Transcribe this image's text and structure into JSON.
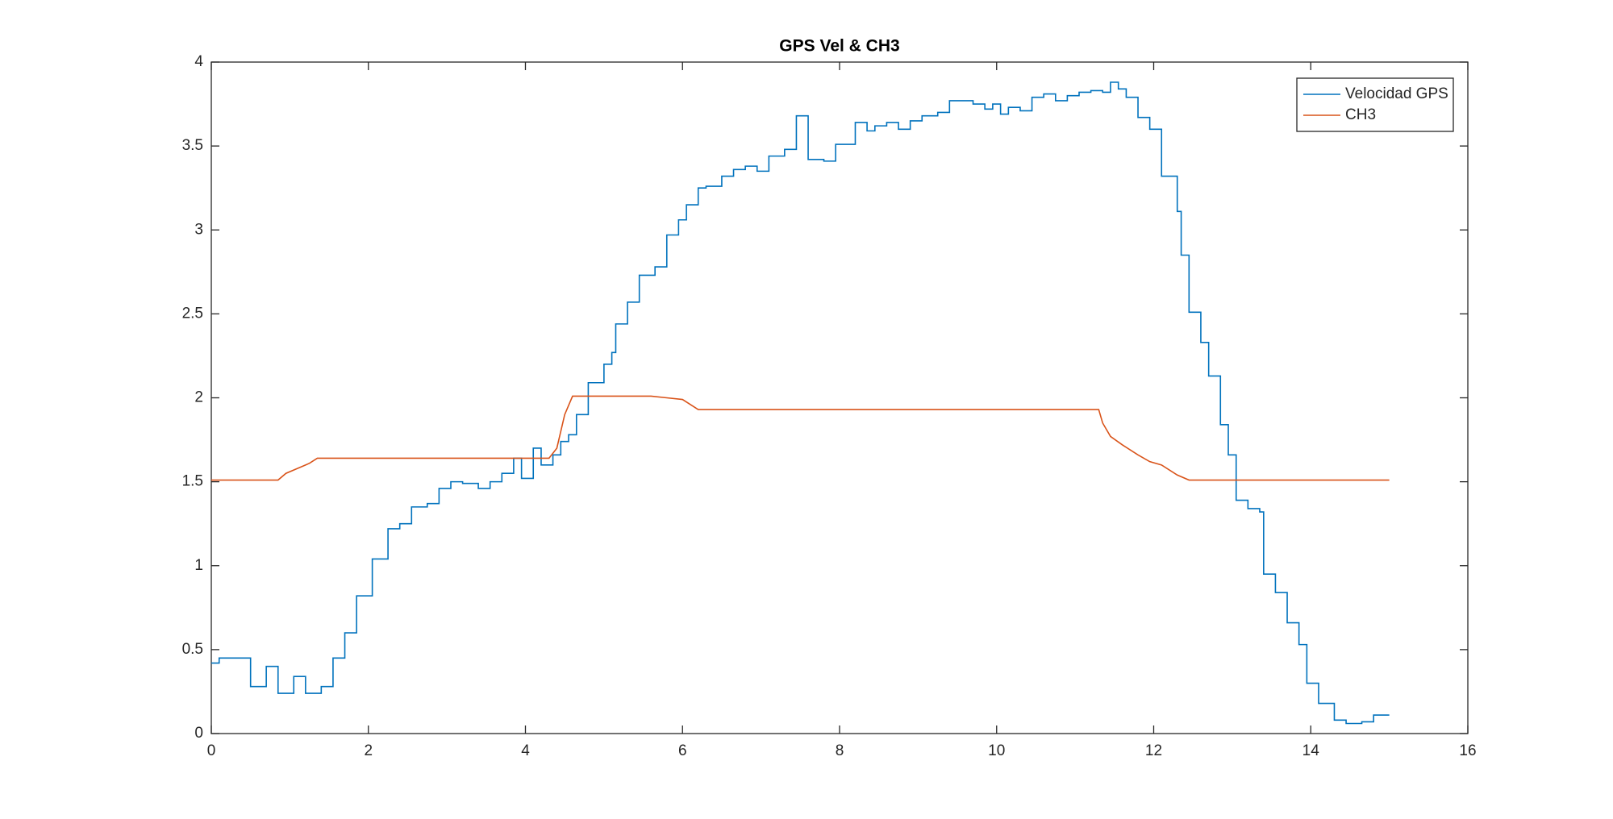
{
  "chart_data": {
    "type": "line",
    "title": "GPS Vel & CH3",
    "xlim": [
      0,
      16
    ],
    "xticks": [
      0,
      2,
      4,
      6,
      8,
      10,
      12,
      14,
      16
    ],
    "ylim": [
      0,
      4
    ],
    "yticks": [
      0,
      0.5,
      1,
      1.5,
      2,
      2.5,
      3,
      3.5,
      4
    ],
    "grid": false,
    "box": true,
    "legend": "northeast",
    "series": [
      {
        "name": "Velocidad GPS",
        "color": "#0072bd",
        "step": true,
        "x": [
          0,
          0.1,
          0.5,
          0.7,
          0.85,
          1.05,
          1.2,
          1.4,
          1.55,
          1.7,
          1.85,
          2.05,
          2.25,
          2.4,
          2.55,
          2.75,
          2.9,
          3.05,
          3.2,
          3.4,
          3.55,
          3.7,
          3.85,
          3.95,
          4.1,
          4.2,
          4.35,
          4.45,
          4.55,
          4.65,
          4.8,
          5.0,
          5.1,
          5.15,
          5.3,
          5.45,
          5.65,
          5.8,
          5.95,
          6.05,
          6.2,
          6.3,
          6.5,
          6.65,
          6.8,
          6.95,
          7.1,
          7.3,
          7.45,
          7.6,
          7.8,
          7.95,
          8.2,
          8.35,
          8.45,
          8.6,
          8.75,
          8.9,
          9.05,
          9.25,
          9.4,
          9.7,
          9.85,
          9.95,
          10.05,
          10.15,
          10.3,
          10.45,
          10.6,
          10.75,
          10.9,
          11.05,
          11.2,
          11.35,
          11.45,
          11.55,
          11.65,
          11.8,
          11.95,
          12.1,
          12.3,
          12.35,
          12.45,
          12.6,
          12.7,
          12.85,
          12.95,
          13.05,
          13.2,
          13.35,
          13.4,
          13.55,
          13.7,
          13.85,
          13.95,
          14.1,
          14.3,
          14.45,
          14.65,
          14.8,
          15
        ],
        "values": [
          0.42,
          0.45,
          0.28,
          0.4,
          0.24,
          0.34,
          0.24,
          0.28,
          0.45,
          0.6,
          0.82,
          1.04,
          1.22,
          1.25,
          1.35,
          1.37,
          1.46,
          1.5,
          1.49,
          1.46,
          1.5,
          1.55,
          1.64,
          1.52,
          1.7,
          1.6,
          1.66,
          1.74,
          1.78,
          1.9,
          2.09,
          2.2,
          2.27,
          2.44,
          2.57,
          2.73,
          2.78,
          2.97,
          3.06,
          3.15,
          3.25,
          3.26,
          3.32,
          3.36,
          3.38,
          3.35,
          3.44,
          3.48,
          3.68,
          3.42,
          3.41,
          3.51,
          3.64,
          3.59,
          3.62,
          3.64,
          3.6,
          3.65,
          3.68,
          3.7,
          3.77,
          3.75,
          3.72,
          3.75,
          3.69,
          3.73,
          3.71,
          3.79,
          3.81,
          3.77,
          3.8,
          3.82,
          3.83,
          3.82,
          3.88,
          3.84,
          3.79,
          3.67,
          3.6,
          3.32,
          3.11,
          2.85,
          2.51,
          2.33,
          2.13,
          1.84,
          1.66,
          1.39,
          1.34,
          1.32,
          0.95,
          0.84,
          0.66,
          0.53,
          0.3,
          0.18,
          0.08,
          0.06,
          0.07,
          0.11,
          0.11
        ]
      },
      {
        "name": "CH3",
        "color": "#d95319",
        "step": false,
        "x": [
          0,
          0.85,
          0.95,
          1.1,
          1.25,
          1.35,
          4.3,
          4.4,
          4.5,
          4.6,
          5.6,
          5.8,
          6.0,
          6.2,
          11.3,
          11.35,
          11.45,
          11.6,
          11.8,
          11.95,
          12.1,
          12.3,
          12.45,
          15
        ],
        "values": [
          1.51,
          1.51,
          1.55,
          1.58,
          1.61,
          1.64,
          1.64,
          1.7,
          1.9,
          2.01,
          2.01,
          2.0,
          1.99,
          1.93,
          1.93,
          1.85,
          1.77,
          1.72,
          1.66,
          1.62,
          1.6,
          1.54,
          1.51,
          1.51
        ]
      }
    ]
  }
}
